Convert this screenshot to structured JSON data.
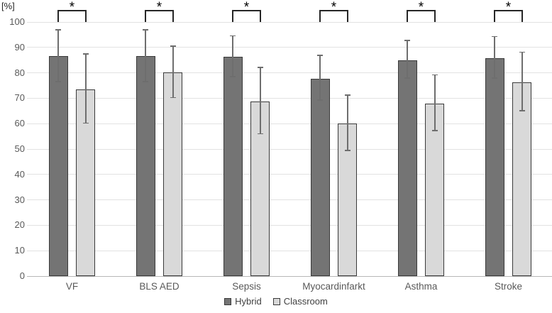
{
  "chart_data": {
    "type": "bar",
    "title": "",
    "ylabel": "[%]",
    "xlabel": "",
    "ylim": [
      0,
      100
    ],
    "yticks": [
      0,
      10,
      20,
      30,
      40,
      50,
      60,
      70,
      80,
      90,
      100
    ],
    "grid": true,
    "legend_position": "bottom",
    "categories": [
      "VF",
      "BLS AED",
      "Sepsis",
      "Myocardinfarkt",
      "Asthma",
      "Stroke"
    ],
    "series": [
      {
        "name": "Hybrid",
        "color": "#747474",
        "border_color": "#3a3a3a",
        "values": [
          86.5,
          86.5,
          86.4,
          77.7,
          84.9,
          85.7
        ],
        "error_low": [
          76.6,
          76.6,
          78.5,
          69.2,
          78.0,
          78.0
        ],
        "error_high": [
          97.0,
          97.0,
          94.6,
          86.9,
          92.8,
          94.3
        ]
      },
      {
        "name": "Classroom",
        "color": "#d9d9d9",
        "border_color": "#3a3a3a",
        "values": [
          73.6,
          80.1,
          68.7,
          60.1,
          67.8,
          76.2
        ],
        "error_low": [
          60.2,
          70.2,
          56.0,
          49.5,
          57.2,
          65.1
        ],
        "error_high": [
          87.5,
          90.5,
          82.2,
          71.3,
          79.2,
          88.1
        ]
      }
    ],
    "significance_markers": [
      "*",
      "*",
      "*",
      "*",
      "*",
      "*"
    ],
    "colors": {
      "gridline": "#e2e2e2",
      "axis_line": "#b7b7b7",
      "error_bar": "#6e6e6e",
      "bracket": "#262626",
      "tick_text": "#595959",
      "label_text": "#595959"
    }
  }
}
